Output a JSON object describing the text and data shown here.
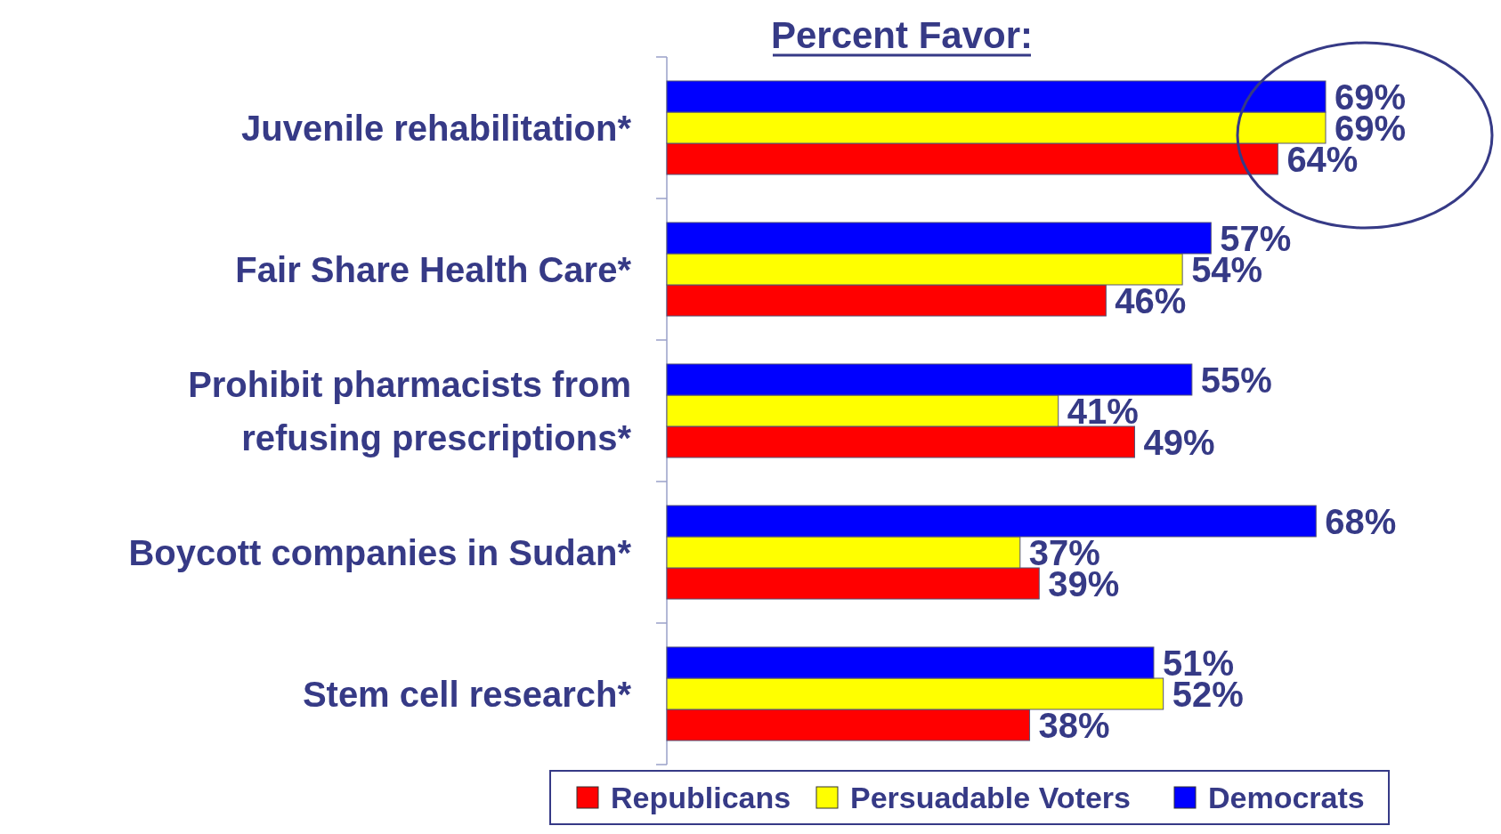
{
  "chart_data": {
    "type": "bar",
    "orientation": "horizontal",
    "title": "Percent Favor:",
    "categories": [
      "Juvenile rehabilitation*",
      "Fair Share Health Care*",
      "Prohibit pharmacists from refusing prescriptions*",
      "Boycott companies in Sudan*",
      "Stem cell research*"
    ],
    "series": [
      {
        "name": "Republicans",
        "color": "#ff0000",
        "values": [
          64,
          46,
          49,
          39,
          38
        ],
        "value_labels": [
          "64%",
          "46%",
          "49%",
          "39%",
          "38%"
        ]
      },
      {
        "name": "Persuadable Voters",
        "color": "#ffff00",
        "values": [
          69,
          54,
          41,
          37,
          52
        ],
        "value_labels": [
          "69%",
          "54%",
          "41%",
          "37%",
          "52%"
        ]
      },
      {
        "name": "Democrats",
        "color": "#0000ff",
        "values": [
          69,
          57,
          55,
          68,
          51
        ],
        "value_labels": [
          "69%",
          "57%",
          "55%",
          "68%",
          "51%"
        ]
      }
    ],
    "legend": "bottom",
    "grid": false
  }
}
